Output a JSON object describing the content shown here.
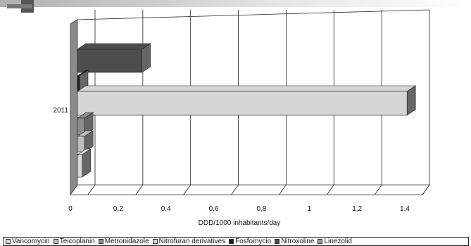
{
  "chart_data": {
    "type": "bar",
    "orientation": "horizontal",
    "three_d": true,
    "categories": [
      "2011"
    ],
    "series": [
      {
        "name": "Vancomycin",
        "values": [
          0.02
        ],
        "color": "#d9d9d9"
      },
      {
        "name": "Teicoplanin",
        "values": [
          0.03
        ],
        "color": "#bdbdbd"
      },
      {
        "name": "Metronidazole",
        "values": [
          0.03
        ],
        "color": "#8c8c8c"
      },
      {
        "name": "Nitrofuran derivatives",
        "values": [
          1.38
        ],
        "color": "#d6d6d6"
      },
      {
        "name": "Fosfomycin",
        "values": [
          0.005
        ],
        "color": "#1a1a1a"
      },
      {
        "name": "Nitroxoline",
        "values": [
          0.27
        ],
        "color": "#4d4d4d"
      },
      {
        "name": "Linezolid",
        "values": [
          0.001
        ],
        "color": "#9a9a9a"
      }
    ],
    "xlabel": "DDD/1000 inhabitants/day",
    "xlim": [
      0,
      1.4
    ],
    "x_ticks": [
      "0",
      "0,2",
      "0,4",
      "0,6",
      "0,8",
      "1",
      "1,2",
      "1,4"
    ],
    "grid": true,
    "legend_position": "bottom"
  }
}
